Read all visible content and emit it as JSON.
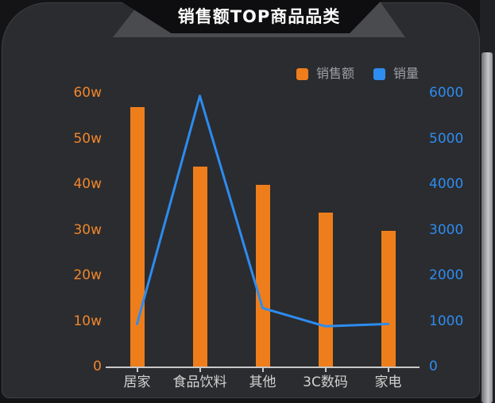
{
  "title": {
    "text": "销售额TOP商品品类"
  },
  "legend": {
    "items": [
      {
        "label": "销售额",
        "color": "#ee7e1b"
      },
      {
        "label": "销量",
        "color": "#2d8cf0"
      }
    ]
  },
  "colors": {
    "panel_bg": "#2b2c2f",
    "outer_bg": "#141416",
    "banner_gray": "#4a4b4f",
    "banner_black": "#0e0e10",
    "bar_orange": "#ee7e1b",
    "line_blue": "#2d8cf0",
    "axis_line": "#c9c9c9",
    "category_label": "#d2d2d2",
    "legend_text": "#9ca0a6"
  },
  "chart_data": {
    "type": "bar+line",
    "title": "销售额TOP商品品类",
    "categories": [
      "居家",
      "食品饮料",
      "其他",
      "3C数码",
      "家电"
    ],
    "series": [
      {
        "name": "销售额",
        "type": "bar",
        "yaxis": "left",
        "color": "#ee7e1b",
        "unit": "w",
        "values": [
          57,
          44,
          40,
          34,
          30
        ]
      },
      {
        "name": "销量",
        "type": "line",
        "yaxis": "right",
        "color": "#2d8cf0",
        "values": [
          950,
          5950,
          1300,
          900,
          950
        ]
      }
    ],
    "left_axis": {
      "min": 0,
      "max": 60,
      "unit": "w",
      "tick_labels": [
        "0",
        "10w",
        "20w",
        "30w",
        "40w",
        "50w",
        "60w"
      ],
      "label_color": "#f0862c"
    },
    "right_axis": {
      "min": 0,
      "max": 6000,
      "tick_labels": [
        "0",
        "1000",
        "2000",
        "3000",
        "4000",
        "5000",
        "6000"
      ],
      "label_color": "#2d8cf0"
    },
    "grid": false,
    "legend_position": "top-right"
  }
}
